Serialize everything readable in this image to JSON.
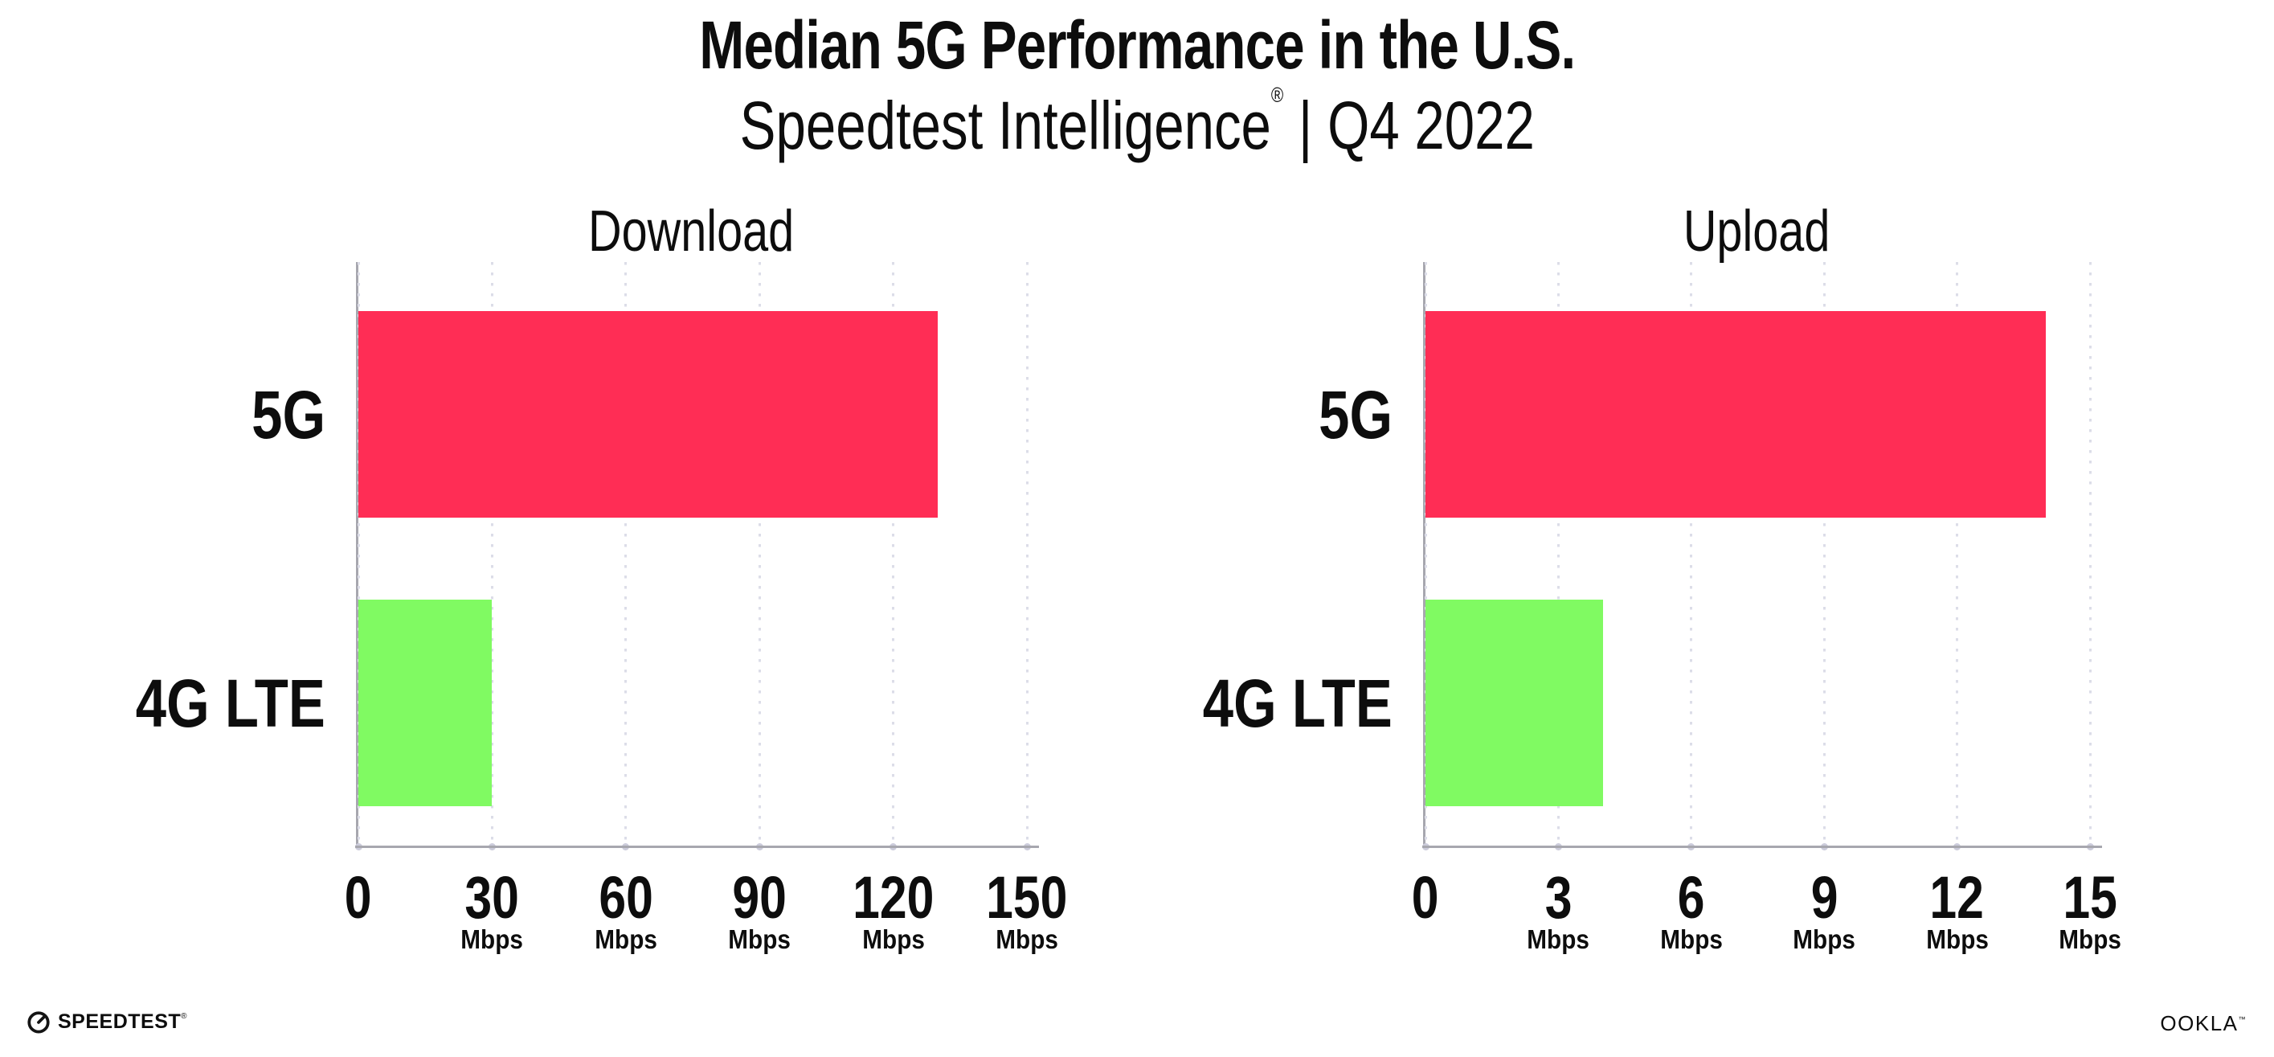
{
  "header": {
    "title": "Median 5G Performance in the U.S.",
    "subtitle_brand": "Speedtest Intelligence",
    "subtitle_reg": "®",
    "subtitle_sep": " | ",
    "subtitle_period": "Q4 2022"
  },
  "colors": {
    "bar_5g": "#ff2d55",
    "bar_4g_lte": "#80fa62",
    "axis": "#a7a7af",
    "gridline_dot": "#dcdde8",
    "text": "#0d0d0d"
  },
  "chart_data": [
    {
      "type": "bar",
      "orientation": "horizontal",
      "title": "Download",
      "categories": [
        "5G",
        "4G LTE"
      ],
      "values": [
        130,
        30
      ],
      "unit": "Mbps",
      "xlim": [
        0,
        150
      ],
      "ticks": [
        0,
        30,
        60,
        90,
        120,
        150
      ],
      "bar_colors": [
        "#ff2d55",
        "#80fa62"
      ],
      "grid": "dotted-vertical",
      "legend": "none"
    },
    {
      "type": "bar",
      "orientation": "horizontal",
      "title": "Upload",
      "categories": [
        "5G",
        "4G LTE"
      ],
      "values": [
        14,
        4
      ],
      "unit": "Mbps",
      "xlim": [
        0,
        15
      ],
      "ticks": [
        0,
        3,
        6,
        9,
        12,
        15
      ],
      "bar_colors": [
        "#ff2d55",
        "#80fa62"
      ],
      "grid": "dotted-vertical",
      "legend": "none"
    }
  ],
  "footer": {
    "speedtest_label": "SPEEDTEST",
    "speedtest_mark": "®",
    "ookla_label": "OOKLA",
    "ookla_mark": "™"
  }
}
